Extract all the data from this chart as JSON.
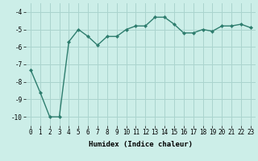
{
  "x": [
    0,
    1,
    2,
    3,
    4,
    5,
    6,
    7,
    8,
    9,
    10,
    11,
    12,
    13,
    14,
    15,
    16,
    17,
    18,
    19,
    20,
    21,
    22,
    23
  ],
  "y": [
    -7.3,
    -8.6,
    -10.0,
    -10.0,
    -5.7,
    -5.0,
    -5.4,
    -5.9,
    -5.4,
    -5.4,
    -5.0,
    -4.8,
    -4.8,
    -4.3,
    -4.3,
    -4.7,
    -5.2,
    -5.2,
    -5.0,
    -5.1,
    -4.8,
    -4.8,
    -4.7,
    -4.9
  ],
  "line_color": "#2e7d6e",
  "marker": "D",
  "markersize": 2.0,
  "linewidth": 1.0,
  "xlabel": "Humidex (Indice chaleur)",
  "xlim": [
    -0.5,
    23.5
  ],
  "ylim": [
    -10.5,
    -3.5
  ],
  "yticks": [
    -10,
    -9,
    -8,
    -7,
    -6,
    -5,
    -4
  ],
  "xtick_labels": [
    "0",
    "1",
    "2",
    "3",
    "4",
    "5",
    "6",
    "7",
    "8",
    "9",
    "10",
    "11",
    "12",
    "13",
    "14",
    "15",
    "16",
    "17",
    "18",
    "19",
    "20",
    "21",
    "22",
    "23"
  ],
  "bg_color": "#cceee8",
  "grid_color": "#aad4ce",
  "axis_fontsize": 6.5,
  "tick_fontsize": 5.5
}
